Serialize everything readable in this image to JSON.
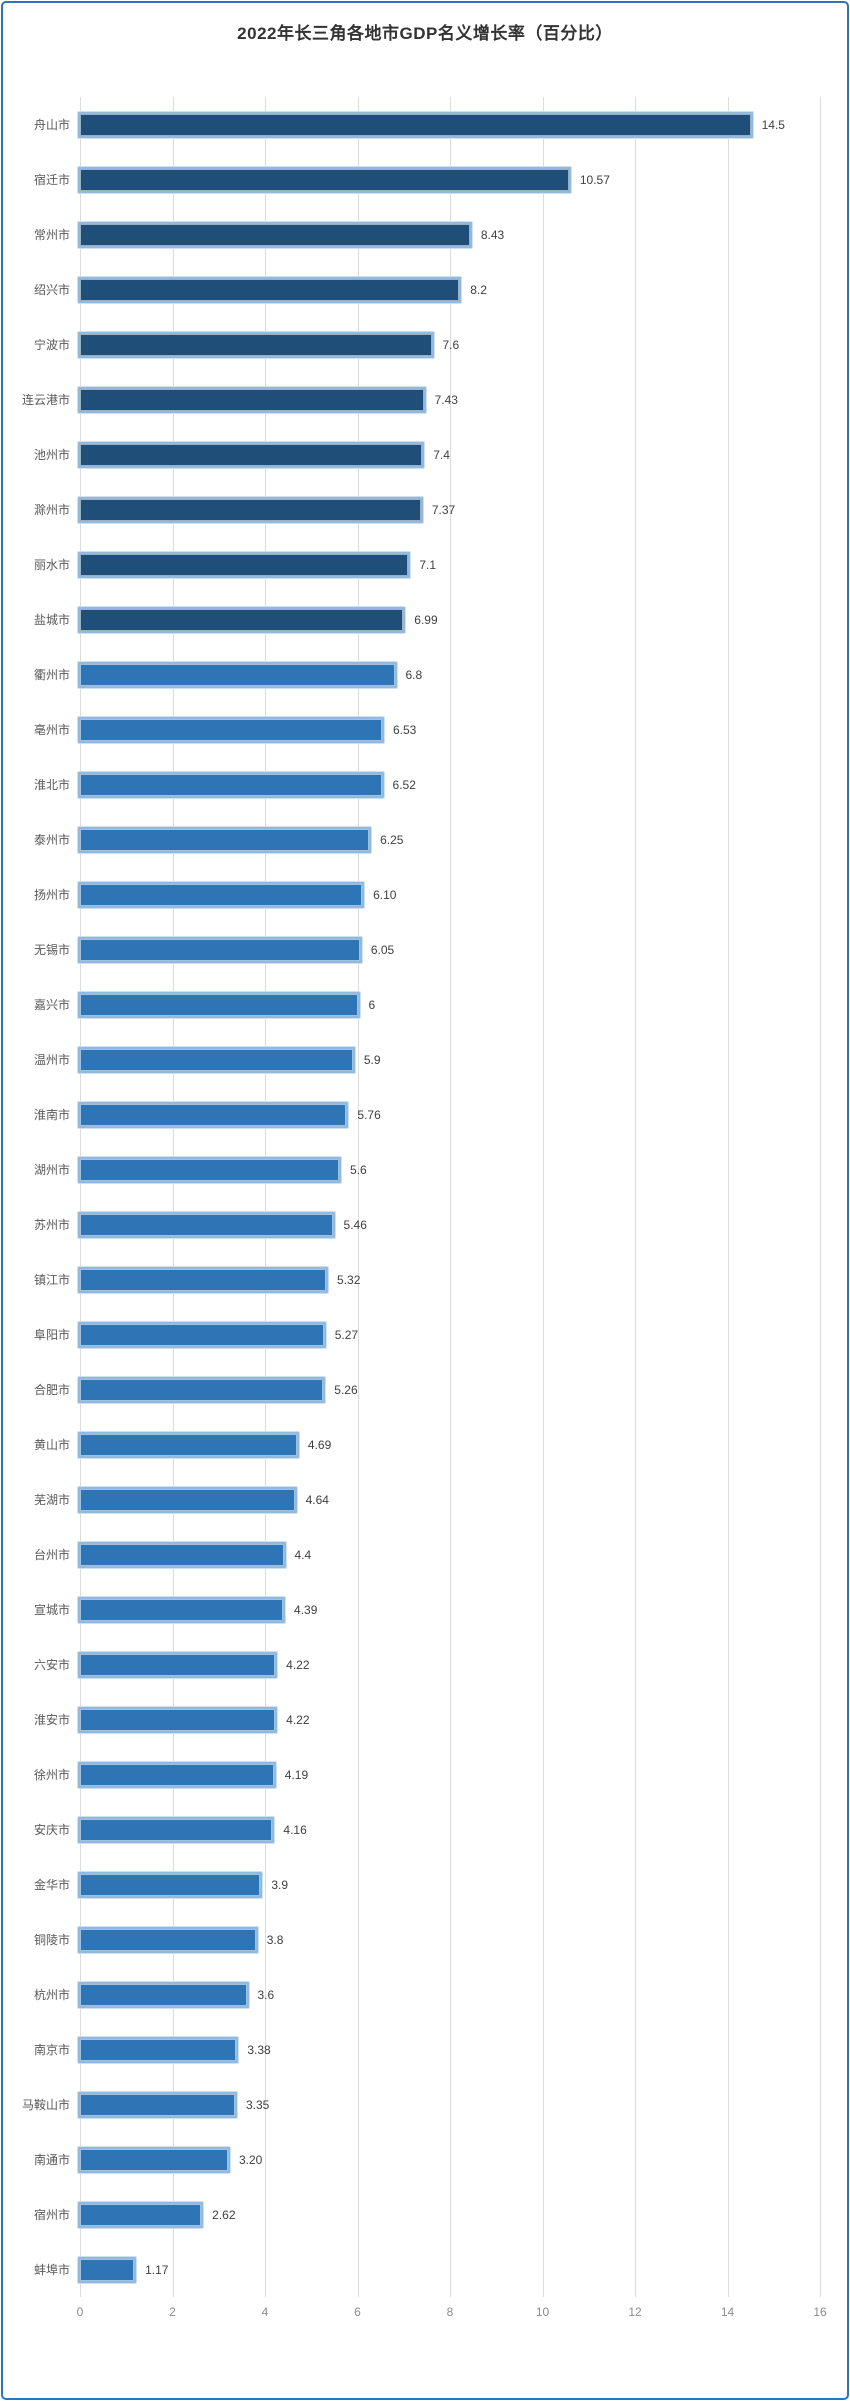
{
  "frame": {
    "border_color": "#2E75B6",
    "background": "#FFFFFF"
  },
  "chart_data": {
    "type": "bar",
    "orientation": "horizontal",
    "title": "2022年长三角各地市GDP名义增长率（百分比）",
    "xlabel": "",
    "ylabel": "",
    "xlim": [
      0,
      16
    ],
    "x_ticks": [
      0,
      2,
      4,
      6,
      8,
      10,
      12,
      14,
      16
    ],
    "grid": true,
    "legend": false,
    "categories": [
      "舟山市",
      "宿迁市",
      "常州市",
      "绍兴市",
      "宁波市",
      "连云港市",
      "池州市",
      "滁州市",
      "丽水市",
      "盐城市",
      "衢州市",
      "亳州市",
      "淮北市",
      "泰州市",
      "扬州市",
      "无锡市",
      "嘉兴市",
      "温州市",
      "淮南市",
      "湖州市",
      "苏州市",
      "镇江市",
      "阜阳市",
      "合肥市",
      "黄山市",
      "芜湖市",
      "台州市",
      "宣城市",
      "六安市",
      "淮安市",
      "徐州市",
      "安庆市",
      "金华市",
      "铜陵市",
      "杭州市",
      "南京市",
      "马鞍山市",
      "南通市",
      "宿州市",
      "蚌埠市"
    ],
    "values": [
      14.5,
      10.57,
      8.43,
      8.2,
      7.6,
      7.43,
      7.4,
      7.37,
      7.1,
      6.99,
      6.8,
      6.53,
      6.52,
      6.25,
      6.1,
      6.05,
      6,
      5.9,
      5.76,
      5.6,
      5.46,
      5.32,
      5.27,
      5.26,
      4.69,
      4.64,
      4.4,
      4.39,
      4.22,
      4.22,
      4.19,
      4.16,
      3.9,
      3.8,
      3.6,
      3.38,
      3.35,
      3.2,
      2.62,
      1.17
    ],
    "value_labels": [
      "14.5",
      "10.57",
      "8.43",
      "8.2",
      "7.6",
      "7.43",
      "7.4",
      "7.37",
      "7.1",
      "6.99",
      "6.8",
      "6.53",
      "6.52",
      "6.25",
      "6.10",
      "6.05",
      "6",
      "5.9",
      "5.76",
      "5.6",
      "5.46",
      "5.32",
      "5.27",
      "5.26",
      "4.69",
      "4.64",
      "4.4",
      "4.39",
      "4.22",
      "4.22",
      "4.19",
      "4.16",
      "3.9",
      "3.8",
      "3.6",
      "3.38",
      "3.35",
      "3.20",
      "2.62",
      "1.17"
    ],
    "colors": {
      "dark_bar_fill": "#1F4E79",
      "light_bar_fill": "#2E75B6",
      "dark_bar_count": 10,
      "bar_border": "#93B9DE",
      "gridline": "#DCDCDC",
      "tick_text": "#8C8C8C",
      "category_text": "#595959",
      "value_text": "#3F3F3F",
      "title_text": "#333333"
    }
  }
}
